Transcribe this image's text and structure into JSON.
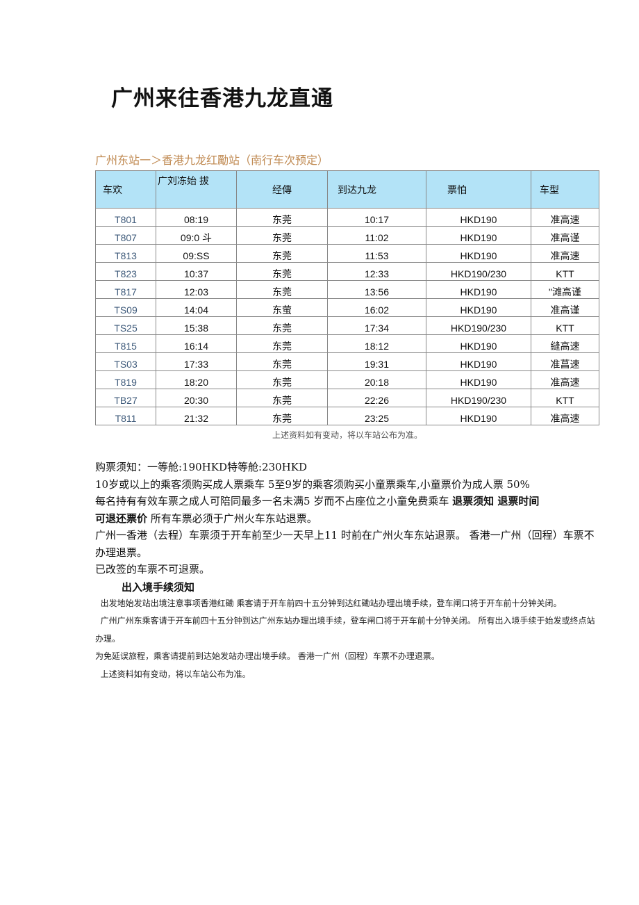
{
  "title": "广州来往香港九龙直通",
  "subtitle": "广州东站一＞香港九龙红勵站（南行车次预定）",
  "table": {
    "headers": [
      "车欢",
      "广刘冻始 拔",
      "经傳",
      "到达九龙",
      "票怕",
      "车型"
    ],
    "rows": [
      [
        "T801",
        "08:19",
        "东莞",
        "10:17",
        "HKD190",
        "准高速"
      ],
      [
        "T807",
        "09:0 斗",
        "东莞",
        "11:02",
        "HKD190",
        "准高谨"
      ],
      [
        "T813",
        "09:SS",
        "东莞",
        "11:53",
        "HKD190",
        "准高速"
      ],
      [
        "T823",
        "10:37",
        "东莞",
        "12:33",
        "HKD190/230",
        "KTT"
      ],
      [
        "T817",
        "12:03",
        "东莞",
        "13:56",
        "HKD190",
        "\"滩高谨"
      ],
      [
        "TS09",
        "14:04",
        "东萤",
        "16:02",
        "HKD190",
        "准高谨"
      ],
      [
        "TS25",
        "15:38",
        "东莞",
        "17:34",
        "HKD190/230",
        "KTT"
      ],
      [
        "T815",
        "16:14",
        "东莞",
        "18:12",
        "HKD190",
        "縫高速"
      ],
      [
        "TS03",
        "17:33",
        "东莞",
        "19:31",
        "HKD190",
        "准菖速"
      ],
      [
        "T819",
        "18:20",
        "东莞",
        "20:18",
        "HKD190",
        "准高速"
      ],
      [
        "TB27",
        "20:30",
        "东莞",
        "22:26",
        "HKD190/230",
        "KTT"
      ],
      [
        "T811",
        "21:32",
        "东莞",
        "23:25",
        "HKD190",
        "准高速"
      ]
    ]
  },
  "table_note": "上述资料如有变动，将以车站公布为准。",
  "notice": {
    "l1": "购票须知：一等舱:190HKD特等舱:230HKD",
    "l2": "10岁或以上的乘客须购买成人票乘车 5至9岁的乘客须购买小童票乘车,小童票价为成人票 50%",
    "l3": "每名持有有效车票之成人可陪同最多一名未满5 岁而不占座位之小童免费乘车 ",
    "l3b": "退票须知 退票时间",
    "l4b": "可退还票价",
    "l4": " 所有车票必须于广州火车东站退票。",
    "l5": "广州一香港（去程）车票须于开车前至少一天早上11 时前在广州火车东站退票。 香港一广州（回程）车票不办理退票。",
    "l6": "已改签的车票不可退票。"
  },
  "border": {
    "heading": "出入境手续须知",
    "p1": "  出发地始发站出境注意事项香港红磡 乘客请于开车前四十五分钟到达红磡站办理出境手续，登车闸口将于开车前十分钟关闭。",
    "p2": "  广州广州东乘客请于开车前四十五分钟到达广州东站办理出境手续，登车闸口将于开车前十分钟关闭。 所有出入境手续于始发或终点站办理。",
    "p3": "为免延误旅程，乘客请提前到达始发站办理出境手续。 香港一广州（回程）车票不办理退票。",
    "p4": "  上述资料如有变动，将以车站公布为准。"
  }
}
